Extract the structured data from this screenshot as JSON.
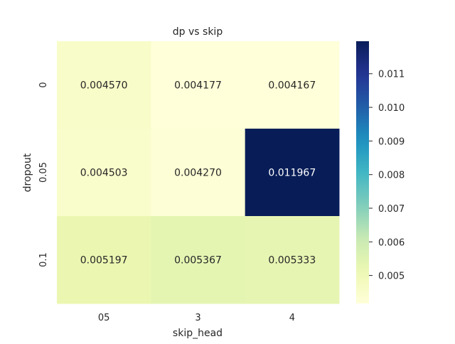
{
  "chart_data": {
    "type": "heatmap",
    "title": "dp vs skip",
    "xlabel": "skip_head",
    "ylabel": "dropout",
    "x_categories": [
      "05",
      "3",
      "4"
    ],
    "y_categories": [
      "0",
      "0.05",
      "0.1"
    ],
    "values": [
      [
        0.00457,
        0.004177,
        0.004167
      ],
      [
        0.004503,
        0.00427,
        0.011967
      ],
      [
        0.005197,
        0.005367,
        0.005333
      ]
    ],
    "cell_labels": [
      [
        "0.004570",
        "0.004177",
        "0.004167"
      ],
      [
        "0.004503",
        "0.004270",
        "0.011967"
      ],
      [
        "0.005197",
        "0.005367",
        "0.005333"
      ]
    ],
    "colormap": "YlGnBu",
    "colorbar": {
      "vmin": 0.004167,
      "vmax": 0.011967,
      "ticks": [
        0.005,
        0.006,
        0.007,
        0.008,
        0.009,
        0.01,
        0.011
      ],
      "tick_labels": [
        "0.005",
        "0.006",
        "0.007",
        "0.008",
        "0.009",
        "0.010",
        "0.011"
      ]
    },
    "grid": false,
    "legend": "colorbar-right"
  }
}
